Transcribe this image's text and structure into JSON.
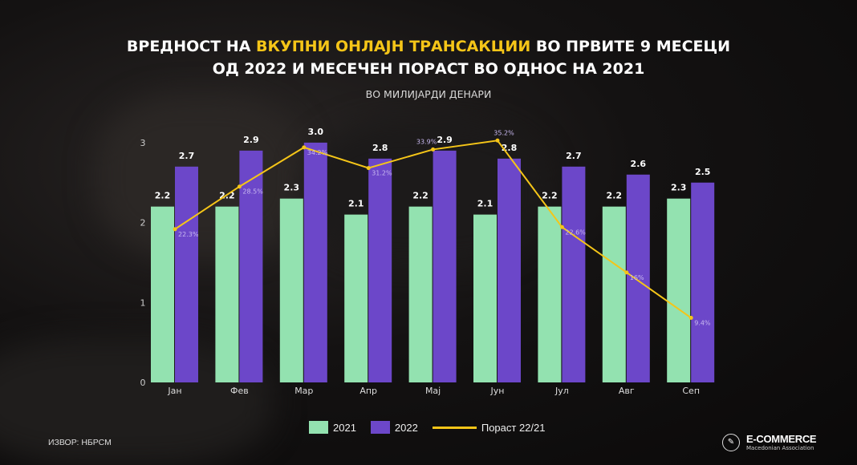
{
  "title": {
    "line1_pre": "ВРЕДНОСТ НА ",
    "line1_highlight": "ВКУПНИ ОНЛАЈН ТРАНСАКЦИИ",
    "line1_post": " ВО ПРВИТЕ 9 МЕСЕЦИ",
    "line2": "ОД 2022 И МЕСЕЧЕН ПОРАСТ ВО ОДНОС НА 2021"
  },
  "subtitle": "ВО МИЛИЈАРДИ ДЕНАРИ",
  "source": "ИЗВОР: НБРСМ",
  "logo": {
    "name": "E-COMMERCE",
    "tagline": "Macedonian Association"
  },
  "colors": {
    "s2021": "#93e2b0",
    "s2022": "#6c47c9",
    "growth": "#f5c518",
    "highlight": "#f5c518"
  },
  "chart_data": {
    "type": "bar",
    "categories": [
      "Јан",
      "Фев",
      "Мар",
      "Апр",
      "Мај",
      "Јун",
      "Јул",
      "Авг",
      "Сеп"
    ],
    "ylim": [
      0,
      3
    ],
    "yticks": [
      "0",
      "1",
      "2",
      "3"
    ],
    "grid": false,
    "legend_position": "bottom",
    "series": [
      {
        "name": "2021",
        "type": "bar",
        "values": [
          2.2,
          2.2,
          2.3,
          2.1,
          2.2,
          2.1,
          2.2,
          2.2,
          2.3
        ],
        "labels": [
          "2.2",
          "2.2",
          "2.3",
          "2.1",
          "2.2",
          "2.1",
          "2.2",
          "2.2",
          "2.3"
        ]
      },
      {
        "name": "2022",
        "type": "bar",
        "values": [
          2.7,
          2.9,
          3.0,
          2.8,
          2.9,
          2.8,
          2.7,
          2.6,
          2.5
        ],
        "labels": [
          "2.7",
          "2.9",
          "3.0",
          "2.8",
          "2.9",
          "2.8",
          "2.7",
          "2.6",
          "2.5"
        ]
      },
      {
        "name": "Пораст 22/21",
        "type": "line",
        "axis": "secondary",
        "ylim": [
          0,
          35
        ],
        "values": [
          22.3,
          28.5,
          34.2,
          31.2,
          33.9,
          35.2,
          22.6,
          16,
          9.4
        ],
        "labels": [
          "22.3%",
          "28.5%",
          "34.2%",
          "31.2%",
          "33.9%",
          "35.2%",
          "22.6%",
          "16%",
          "9.4%"
        ]
      }
    ]
  }
}
